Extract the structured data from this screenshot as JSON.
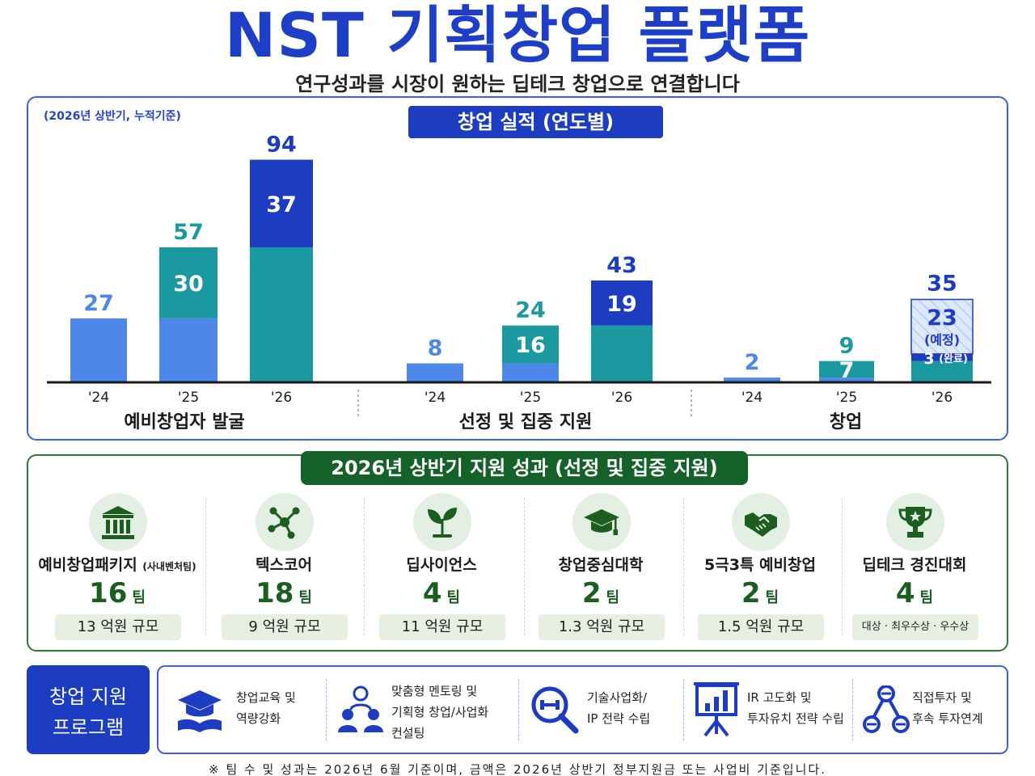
{
  "header": {
    "title": "NST 기획창업 플랫폼",
    "subtitle": "연구성과를 시장이 원하는 딥테크 창업으로 연결합니다"
  },
  "performance": {
    "note": "(2026년 상반기, 누적기준)",
    "heading": "창업 실적 (연도별)"
  },
  "chart_data": {
    "type": "bar",
    "title": "창업 실적 (연도별)",
    "groups": [
      {
        "name": "예비창업자 발굴",
        "bars": [
          {
            "year": "'24",
            "total": 27,
            "base": 27,
            "increment": null
          },
          {
            "year": "'25",
            "total": 57,
            "base": 27,
            "increment": 30
          },
          {
            "year": "'26",
            "total": 94,
            "base": 57,
            "increment": 37
          }
        ]
      },
      {
        "name": "선정 및 집중 지원",
        "bars": [
          {
            "year": "'24",
            "total": 8,
            "base": 8,
            "increment": null
          },
          {
            "year": "'25",
            "total": 24,
            "base": 8,
            "increment": 16
          },
          {
            "year": "'26",
            "total": 43,
            "base": 24,
            "increment": 19
          }
        ]
      },
      {
        "name": "창업",
        "bars": [
          {
            "year": "'24",
            "total": 2,
            "base": 2,
            "increment": null
          },
          {
            "year": "'25",
            "total": 9,
            "base": 2,
            "increment": 7
          },
          {
            "year": "'26",
            "total": 35,
            "base": 9,
            "completed": 3,
            "planned": 23,
            "completed_label": "3",
            "completed_note": "(완료)",
            "planned_label": "23",
            "planned_note": "(예정)"
          }
        ]
      }
    ],
    "ylim": [
      0,
      100
    ],
    "colors": {
      "base_2024": "#4d87ea",
      "base_prev_blue": "#4d87ea",
      "teal": "#1a9aa0",
      "increment_2026": "#1c3cc2",
      "planned_hatch": "#dde8fb"
    }
  },
  "support": {
    "heading": "2026년 상반기 지원 성과 (선정 및 집중 지원)",
    "cards": [
      {
        "name": "예비창업패키지",
        "name_note": "(사내벤처팀)",
        "count": "16",
        "unit": "팀",
        "scale": "13 억원 규모",
        "icon": "institution-icon"
      },
      {
        "name": "텍스코어",
        "name_note": "",
        "count": "18",
        "unit": "팀",
        "scale": "9 억원 규모",
        "icon": "network-icon"
      },
      {
        "name": "딥사이언스",
        "name_note": "",
        "count": "4",
        "unit": "팀",
        "scale": "11 억원 규모",
        "icon": "sprout-icon"
      },
      {
        "name": "창업중심대학",
        "name_note": "",
        "count": "2",
        "unit": "팀",
        "scale": "1.3 억원 규모",
        "icon": "graduation-cap-icon"
      },
      {
        "name": "5극3특 예비창업",
        "name_note": "",
        "count": "2",
        "unit": "팀",
        "scale": "1.5 억원 규모",
        "icon": "handshake-icon"
      },
      {
        "name": "딥테크 경진대회",
        "name_note": "",
        "count": "4",
        "unit": "팀",
        "scale": "대상 · 최우수상 · 우수상",
        "icon": "trophy-icon"
      }
    ]
  },
  "programs": {
    "label_line1": "창업 지원",
    "label_line2": "프로그램",
    "items": [
      {
        "lines": [
          "창업교육 및",
          "역량강화"
        ],
        "icon": "graduation-book-icon"
      },
      {
        "lines": [
          "맞춤형 멘토링 및",
          "기획형 창업/사업화",
          "컨설팅"
        ],
        "icon": "mentoring-people-icon"
      },
      {
        "lines": [
          "기술사업화/",
          "IP 전략 수립"
        ],
        "icon": "magnifier-icon"
      },
      {
        "lines": [
          "IR 고도화 및",
          "투자유치 전략 수립"
        ],
        "icon": "presentation-board-icon"
      },
      {
        "lines": [
          "직접투자 및",
          "후속 투자연계"
        ],
        "icon": "investment-link-icon"
      }
    ]
  },
  "footnote": "※ 팀 수 및 성과는 2026년 6월 기준이며, 금액은 2026년 상반기 정부지원금 또는 사업비 기준입니다."
}
